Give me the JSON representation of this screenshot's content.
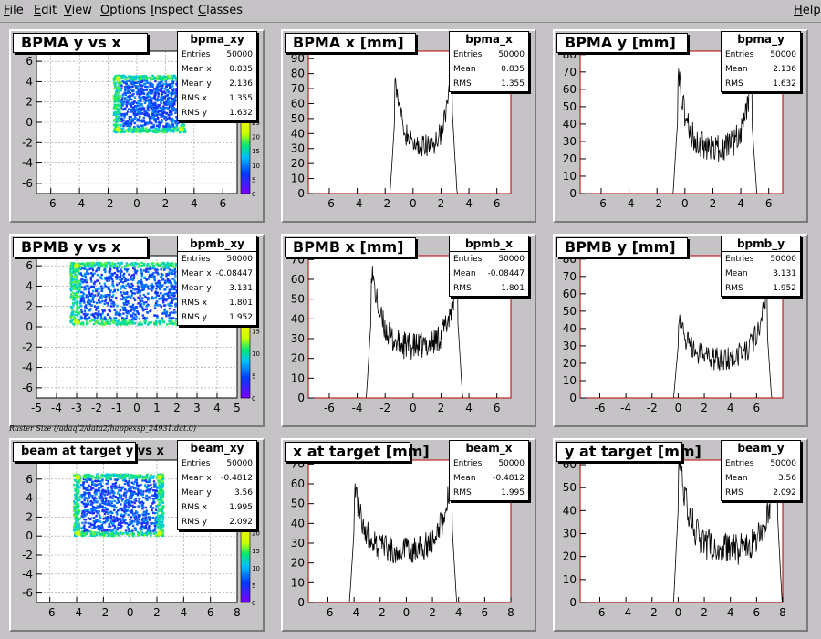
{
  "menu": [
    {
      "label": "File",
      "u": "F",
      "rest": "ile"
    },
    {
      "label": "Edit",
      "u": "E",
      "rest": "dit"
    },
    {
      "label": "View",
      "u": "V",
      "rest": "iew"
    },
    {
      "label": "Options",
      "u": "O",
      "rest": "ptions"
    },
    {
      "label": "Inspect",
      "u": "I",
      "rest": "nspect"
    },
    {
      "label": "Classes",
      "u": "C",
      "rest": "lasses"
    }
  ],
  "help": {
    "label": "Help",
    "u": "H",
    "rest": "elp"
  },
  "raster_caption": "Raster Size (/adaql2/data2/happexsp_24931.dat.0)",
  "colors": {
    "frame": "#b00000",
    "trace": "#000000",
    "background": "#c6c3c6"
  },
  "chart_data": [
    {
      "id": "bpma_xy",
      "type": "heatmap",
      "title": "BPMA y vs x",
      "xlim": [
        -7,
        7
      ],
      "ylim": [
        -7,
        7
      ],
      "xticks": [
        -6,
        -4,
        -2,
        0,
        2,
        4,
        6
      ],
      "yticks": [
        -6,
        -4,
        -2,
        0,
        2,
        4,
        6
      ],
      "rect": {
        "x": [
          -1.6,
          3.4
        ],
        "y": [
          -1,
          4.6
        ]
      },
      "palette_ticks": [
        0,
        5,
        10,
        15,
        20,
        25
      ],
      "stats": {
        "name": "bpma_xy",
        "rows": [
          [
            "Entries",
            "50000"
          ],
          [
            "Mean x",
            "0.835"
          ],
          [
            "Mean y",
            "2.136"
          ],
          [
            "RMS x",
            "1.355"
          ],
          [
            "RMS y",
            "1.632"
          ]
        ]
      }
    },
    {
      "id": "bpma_x",
      "type": "line",
      "title": "BPMA x [mm]",
      "xlim": [
        -7.5,
        7
      ],
      "ylim": [
        0,
        95
      ],
      "xticks": [
        -6,
        -4,
        -2,
        0,
        2,
        4,
        6
      ],
      "yticks": [
        0,
        10,
        20,
        30,
        40,
        50,
        60,
        70,
        80,
        90
      ],
      "profile": {
        "lo": -1.3,
        "hi": 2.8,
        "peak_l": 85,
        "peak_r": 93,
        "floor": 30,
        "jitter": 8
      },
      "stats": {
        "name": "bpma_x",
        "rows": [
          [
            "Entries",
            "50000"
          ],
          [
            "Mean",
            "0.835"
          ],
          [
            "RMS",
            "1.355"
          ]
        ]
      }
    },
    {
      "id": "bpma_y",
      "type": "line",
      "title": "BPMA y [mm]",
      "xlim": [
        -7.5,
        7
      ],
      "ylim": [
        0,
        82
      ],
      "xticks": [
        -6,
        -4,
        -2,
        0,
        2,
        4,
        6
      ],
      "yticks": [
        0,
        10,
        20,
        30,
        40,
        50,
        60,
        70,
        80
      ],
      "profile": {
        "lo": -0.5,
        "hi": 4.8,
        "peak_l": 75,
        "peak_r": 68,
        "floor": 25,
        "jitter": 8
      },
      "stats": {
        "name": "bpma_y",
        "rows": [
          [
            "Entries",
            "50000"
          ],
          [
            "Mean",
            "2.136"
          ],
          [
            "RMS",
            "1.632"
          ]
        ]
      }
    },
    {
      "id": "bpmb_xy",
      "type": "heatmap",
      "title": "BPMB y vs x",
      "xlim": [
        -5,
        5
      ],
      "ylim": [
        -7,
        7
      ],
      "xticks": [
        -5,
        -4,
        -3,
        -2,
        -1,
        0,
        1,
        2,
        3,
        4,
        5
      ],
      "yticks": [
        -6,
        -4,
        -2,
        0,
        2,
        4,
        6
      ],
      "rect": {
        "x": [
          -3.3,
          2.5
        ],
        "y": [
          0.2,
          6.3
        ]
      },
      "palette_ticks": [
        0,
        5,
        10,
        15
      ],
      "stats": {
        "name": "bpmb_xy",
        "rows": [
          [
            "Entries",
            "50000"
          ],
          [
            "Mean x",
            "-0.08447"
          ],
          [
            "Mean y",
            "3.131"
          ],
          [
            "RMS x",
            "1.801"
          ],
          [
            "RMS y",
            "1.952"
          ]
        ]
      }
    },
    {
      "id": "bpmb_x",
      "type": "line",
      "title": "BPMB x [mm]",
      "xlim": [
        -7.5,
        7
      ],
      "ylim": [
        0,
        72
      ],
      "xticks": [
        -6,
        -4,
        -2,
        0,
        2,
        4,
        6
      ],
      "yticks": [
        0,
        10,
        20,
        30,
        40,
        50,
        60,
        70
      ],
      "profile": {
        "lo": -3.0,
        "hi": 3.2,
        "peak_l": 68,
        "peak_r": 65,
        "floor": 25,
        "jitter": 7
      },
      "stats": {
        "name": "bpmb_x",
        "rows": [
          [
            "Entries",
            "50000"
          ],
          [
            "Mean",
            "-0.08447"
          ],
          [
            "RMS",
            "1.801"
          ]
        ]
      }
    },
    {
      "id": "bpmb_y",
      "type": "line",
      "title": "BPMB y [mm]",
      "xlim": [
        -7.5,
        8
      ],
      "ylim": [
        0,
        82
      ],
      "xticks": [
        -6,
        -4,
        -2,
        0,
        2,
        4,
        6
      ],
      "yticks": [
        0,
        10,
        20,
        30,
        40,
        50,
        60,
        70,
        80
      ],
      "profile": {
        "lo": 0.0,
        "hi": 6.8,
        "peak_l": 50,
        "peak_r": 65,
        "floor": 22,
        "jitter": 7
      },
      "stats": {
        "name": "bpmb_y",
        "rows": [
          [
            "Entries",
            "50000"
          ],
          [
            "Mean",
            "3.131"
          ],
          [
            "RMS",
            "1.952"
          ]
        ]
      }
    },
    {
      "id": "beam_xy",
      "type": "heatmap",
      "title": "beam at target y vs x",
      "xlim": [
        -7,
        8
      ],
      "ylim": [
        -7,
        8
      ],
      "xticks": [
        -6,
        -4,
        -2,
        0,
        2,
        4,
        6,
        8
      ],
      "yticks": [
        -6,
        -4,
        -2,
        0,
        2,
        4,
        6
      ],
      "rect": {
        "x": [
          -4.2,
          2.5
        ],
        "y": [
          0,
          6.5
        ]
      },
      "palette_ticks": [
        0,
        5,
        10,
        15,
        20
      ],
      "stats": {
        "name": "beam_xy",
        "rows": [
          [
            "Entries",
            "50000"
          ],
          [
            "Mean x",
            "-0.4812"
          ],
          [
            "Mean y",
            "3.56"
          ],
          [
            "RMS x",
            "1.995"
          ],
          [
            "RMS y",
            "2.092"
          ]
        ]
      }
    },
    {
      "id": "beam_x",
      "type": "line",
      "title": "x at target [mm]",
      "xlim": [
        -7.5,
        8
      ],
      "ylim": [
        0,
        72
      ],
      "xticks": [
        -6,
        -4,
        -2,
        0,
        2,
        4,
        6,
        8
      ],
      "yticks": [
        0,
        10,
        20,
        30,
        40,
        50,
        60,
        70
      ],
      "profile": {
        "lo": -4.0,
        "hi": 3.5,
        "peak_l": 60,
        "peak_r": 65,
        "floor": 25,
        "jitter": 7
      },
      "stats": {
        "name": "beam_x",
        "rows": [
          [
            "Entries",
            "50000"
          ],
          [
            "Mean",
            "-0.4812"
          ],
          [
            "RMS",
            "1.995"
          ]
        ]
      }
    },
    {
      "id": "beam_y",
      "type": "line",
      "title": "y at target [mm]",
      "xlim": [
        -7.5,
        8
      ],
      "ylim": [
        0,
        62
      ],
      "xticks": [
        -6,
        -4,
        -2,
        0,
        2,
        4,
        6,
        8
      ],
      "yticks": [
        0,
        10,
        20,
        30,
        40,
        50,
        60
      ],
      "profile": {
        "lo": 0.0,
        "hi": 7.6,
        "peak_l": 68,
        "peak_r": 64,
        "floor": 22,
        "jitter": 7
      },
      "stats": {
        "name": "beam_y",
        "rows": [
          [
            "Entries",
            "50000"
          ],
          [
            "Mean",
            "3.56"
          ],
          [
            "RMS",
            "2.092"
          ]
        ]
      }
    }
  ]
}
